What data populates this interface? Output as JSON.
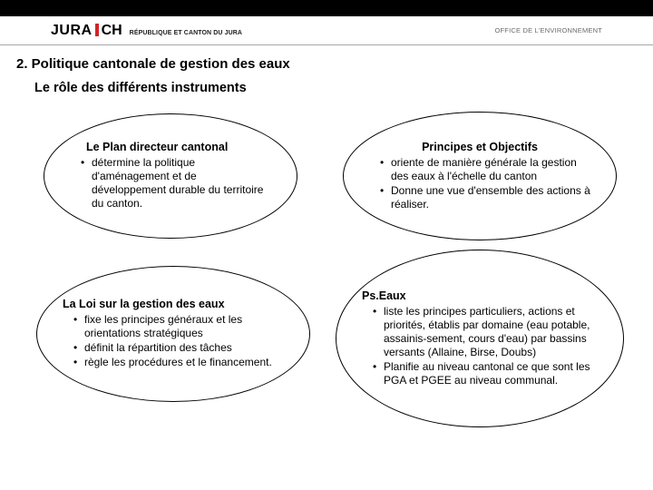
{
  "header": {
    "logo_left": "JURA",
    "logo_right": "CH",
    "logo_subtitle": "RÉPUBLIQUE ET CANTON DU JURA",
    "office": "OFFICE DE L'ENVIRONNEMENT"
  },
  "section_title": "2. Politique cantonale de gestion des eaux",
  "subtitle": "Le rôle des différents instruments",
  "ellipses": {
    "e1": {
      "title": "Le Plan directeur cantonal",
      "items": [
        "détermine la politique d'aménagement et de développement durable du territoire du canton."
      ]
    },
    "e2": {
      "title": "Principes et Objectifs",
      "items": [
        "oriente de manière générale la gestion des eaux à l'échelle du canton",
        "Donne une vue d'ensemble des actions à réaliser."
      ]
    },
    "e3": {
      "title": "La Loi sur la gestion des eaux",
      "items": [
        "fixe les principes généraux et les orientations stratégiques",
        "définit la répartition des tâches",
        "règle les procédures et le financement."
      ]
    },
    "e4": {
      "title": "Ps.Eaux",
      "items": [
        "liste les principes particuliers, actions et priorités, établis par domaine (eau potable, assainis-sement, cours d'eau) par bassins versants (Allaine, Birse, Doubs)",
        "Planifie au niveau cantonal ce que sont les PGA et PGEE au niveau communal."
      ]
    }
  },
  "colors": {
    "background": "#ffffff",
    "topbar": "#000000",
    "border": "#000000",
    "logo_accent": "#d2232a",
    "divider": "#a8a8a8",
    "office_text": "#6a6a6a"
  }
}
